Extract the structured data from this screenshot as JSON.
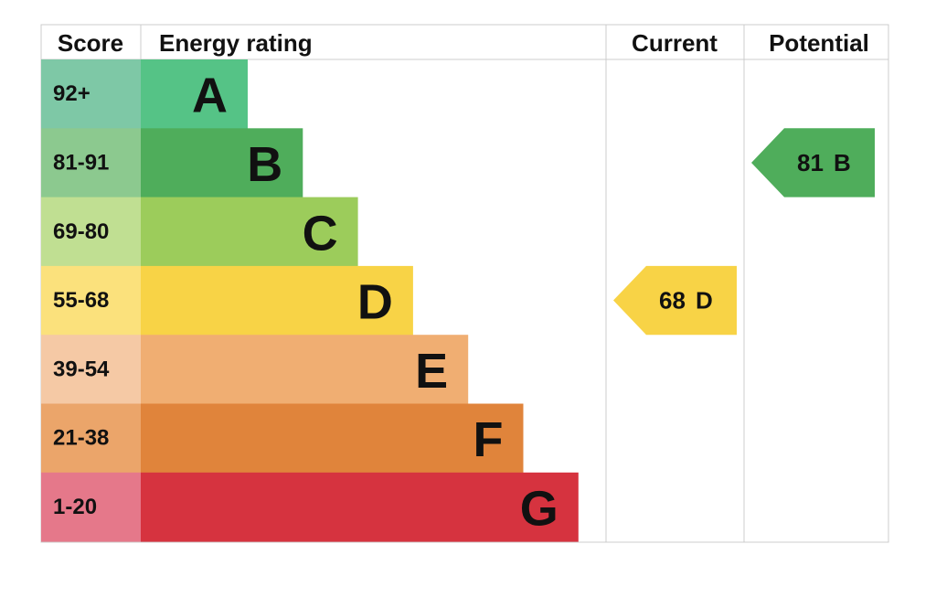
{
  "header": {
    "score": "Score",
    "rating": "Energy rating",
    "current": "Current",
    "potential": "Potential"
  },
  "bands": [
    {
      "score": "92+",
      "letter": "A",
      "color": "#55c386",
      "score_color": "#7ec8a6"
    },
    {
      "score": "81-91",
      "letter": "B",
      "color": "#4fad5b",
      "score_color": "#8cc98f"
    },
    {
      "score": "69-80",
      "letter": "C",
      "color": "#9ccc5b",
      "score_color": "#c0df92"
    },
    {
      "score": "55-68",
      "letter": "D",
      "color": "#f8d346",
      "score_color": "#fbe17c"
    },
    {
      "score": "39-54",
      "letter": "E",
      "color": "#f0ae72",
      "score_color": "#f5c9a5"
    },
    {
      "score": "21-38",
      "letter": "F",
      "color": "#e0843b",
      "score_color": "#eba56a"
    },
    {
      "score": "1-20",
      "letter": "G",
      "color": "#d6333f",
      "score_color": "#e5788a"
    }
  ],
  "current": {
    "value": 68,
    "letter": "D"
  },
  "potential": {
    "value": 81,
    "letter": "B"
  }
}
